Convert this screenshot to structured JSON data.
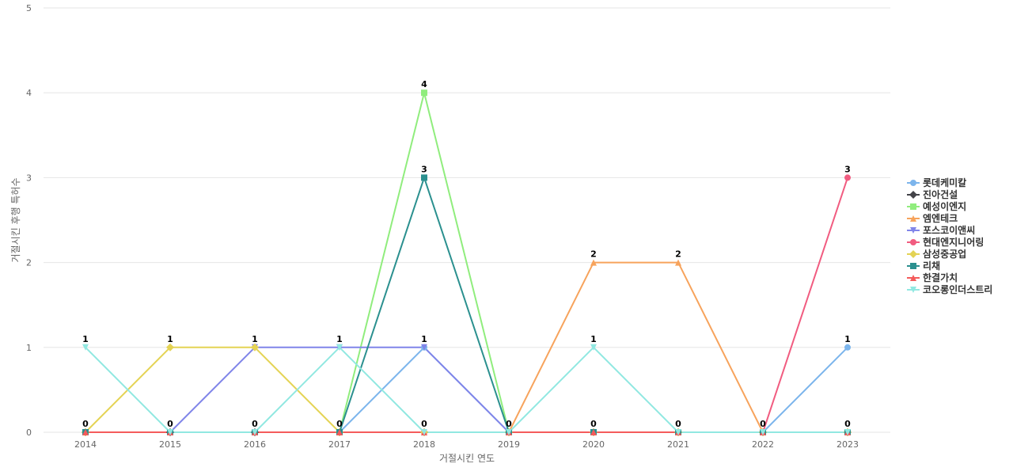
{
  "chart_data": {
    "type": "line",
    "xlabel": "거절시킨 연도",
    "ylabel": "거절시킨 후행 특허수",
    "ylim": [
      0,
      5
    ],
    "yticks": [
      0,
      1,
      2,
      3,
      4,
      5
    ],
    "grid": true,
    "legend_position": "right",
    "x": [
      "2014",
      "2015",
      "2016",
      "2017",
      "2018",
      "2019",
      "2020",
      "2021",
      "2022",
      "2023"
    ],
    "series": [
      {
        "name": "롯데케미칼",
        "color": "#7cb5ec",
        "marker": "circle",
        "values": [
          0,
          0,
          0,
          0,
          1,
          0,
          0,
          0,
          0,
          1
        ]
      },
      {
        "name": "진아건설",
        "color": "#434348",
        "marker": "diamond",
        "values": [
          0,
          0,
          0,
          0,
          0,
          0,
          0,
          0,
          0,
          0
        ]
      },
      {
        "name": "예성이엔지",
        "color": "#90ed7d",
        "marker": "square",
        "values": [
          0,
          0,
          0,
          0,
          4,
          0,
          0,
          0,
          0,
          0
        ]
      },
      {
        "name": "엠엔테크",
        "color": "#f7a35c",
        "marker": "triangle",
        "values": [
          0,
          0,
          0,
          0,
          0,
          0,
          2,
          2,
          0,
          0
        ]
      },
      {
        "name": "포스코이앤씨",
        "color": "#8085e9",
        "marker": "triangle-down",
        "values": [
          0,
          0,
          1,
          1,
          1,
          0,
          0,
          0,
          0,
          0
        ]
      },
      {
        "name": "현대엔지니어링",
        "color": "#f15c80",
        "marker": "circle",
        "values": [
          0,
          0,
          0,
          0,
          0,
          0,
          0,
          0,
          0,
          3
        ]
      },
      {
        "name": "삼성중공업",
        "color": "#e4d354",
        "marker": "diamond",
        "values": [
          0,
          1,
          1,
          0,
          0,
          0,
          0,
          0,
          0,
          0
        ]
      },
      {
        "name": "리채",
        "color": "#2b908f",
        "marker": "square",
        "values": [
          0,
          0,
          0,
          0,
          3,
          0,
          0,
          0,
          0,
          0
        ]
      },
      {
        "name": "한결가치",
        "color": "#f45b5b",
        "marker": "triangle",
        "values": [
          0,
          0,
          0,
          0,
          0,
          0,
          0,
          0,
          0,
          0
        ]
      },
      {
        "name": "코오롱인더스트리",
        "color": "#91e8e1",
        "marker": "triangle-down",
        "values": [
          1,
          0,
          0,
          1,
          0,
          0,
          1,
          0,
          0,
          0
        ]
      }
    ],
    "data_labels": [
      {
        "x": "2014",
        "value": 1
      },
      {
        "x": "2014",
        "value": 0
      },
      {
        "x": "2015",
        "value": 1
      },
      {
        "x": "2015",
        "value": 0
      },
      {
        "x": "2016",
        "value": 1
      },
      {
        "x": "2016",
        "value": 0
      },
      {
        "x": "2017",
        "value": 1
      },
      {
        "x": "2017",
        "value": 0
      },
      {
        "x": "2018",
        "value": 4
      },
      {
        "x": "2018",
        "value": 3
      },
      {
        "x": "2018",
        "value": 1
      },
      {
        "x": "2018",
        "value": 0
      },
      {
        "x": "2019",
        "value": 0
      },
      {
        "x": "2020",
        "value": 2
      },
      {
        "x": "2020",
        "value": 1
      },
      {
        "x": "2020",
        "value": 0
      },
      {
        "x": "2021",
        "value": 2
      },
      {
        "x": "2021",
        "value": 0
      },
      {
        "x": "2022",
        "value": 0
      },
      {
        "x": "2023",
        "value": 3
      },
      {
        "x": "2023",
        "value": 1
      },
      {
        "x": "2023",
        "value": 0
      }
    ]
  }
}
